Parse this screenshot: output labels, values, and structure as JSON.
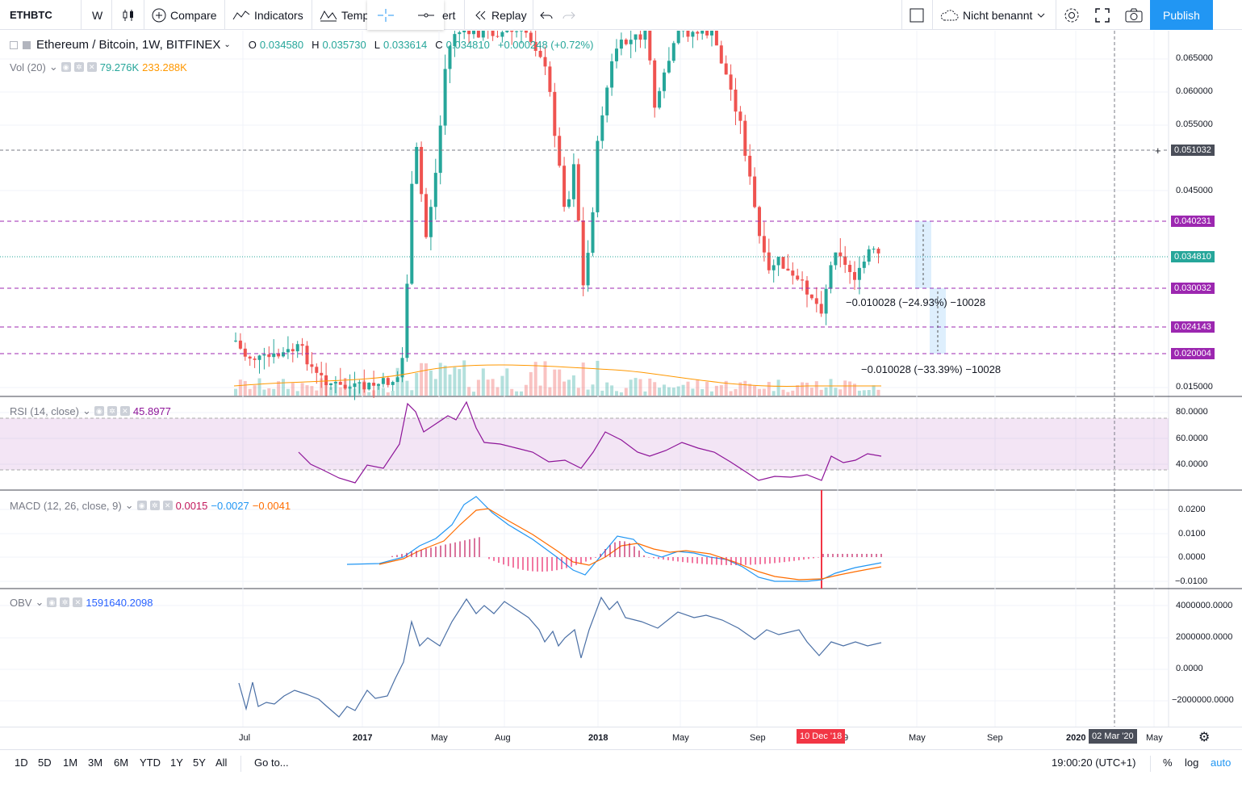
{
  "toolbar": {
    "symbol": "ETHBTC",
    "interval": "W",
    "compare": "Compare",
    "indicators": "Indicators",
    "templates": "Temp",
    "alert": "ert",
    "replay": "Replay",
    "layout_name": "Nicht benannt",
    "publish": "Publish"
  },
  "legend": {
    "title": "Ethereum / Bitcoin, 1W, BITFINEX",
    "o_label": "O",
    "o_val": "0.034580",
    "h_label": "H",
    "h_val": "0.035730",
    "l_label": "L",
    "l_val": "0.033614",
    "c_label": "C",
    "c_val": "0.034810",
    "change": "+0.000248 (+0.72%)",
    "vol_name": "Vol (20)",
    "vol_val1": "79.276K",
    "vol_val2": "233.288K"
  },
  "indicators": {
    "rsi_name": "RSI (14, close)",
    "rsi_val": "45.8977",
    "macd_name": "MACD (12, 26, close, 9)",
    "macd_val1": "0.0015",
    "macd_val2": "−0.0027",
    "macd_val3": "−0.0041",
    "obv_name": "OBV",
    "obv_val": "1591640.2098"
  },
  "price_axis": [
    "0.065000",
    "0.060000",
    "0.055000",
    "0.045000",
    "0.015000"
  ],
  "price_tags": {
    "crosshair": "0.051032",
    "level1": "0.040231",
    "last": "0.034810",
    "level2": "0.030032",
    "level3": "0.024143",
    "level4": "0.020004"
  },
  "rsi_axis": [
    "80.0000",
    "60.0000",
    "40.0000"
  ],
  "macd_axis": [
    "0.0200",
    "0.0100",
    "0.0000",
    "−0.0100"
  ],
  "obv_axis": [
    "4000000.0000",
    "2000000.0000",
    "0.0000",
    "−2000000.0000"
  ],
  "measurements": {
    "m1": "−0.010028 (−24.93%) −10028",
    "m2": "−0.010028 (−33.39%) −10028"
  },
  "time_axis": [
    "Jul",
    "2017",
    "May",
    "Aug",
    "2018",
    "May",
    "Sep",
    "9",
    "May",
    "Sep",
    "2020",
    "May"
  ],
  "time_tags": {
    "crosshair_date": "10 Dec '18",
    "end_date": "02 Mar '20"
  },
  "bottom": {
    "ranges": [
      "1D",
      "5D",
      "1M",
      "3M",
      "6M",
      "YTD",
      "1Y",
      "5Y",
      "All"
    ],
    "goto": "Go to...",
    "clock": "19:00:20 (UTC+1)",
    "pct": "%",
    "log": "log",
    "auto": "auto"
  },
  "colors": {
    "up": "#26a69a",
    "down": "#ef5350",
    "level": "#9c27b0",
    "accent": "#2196f3"
  }
}
